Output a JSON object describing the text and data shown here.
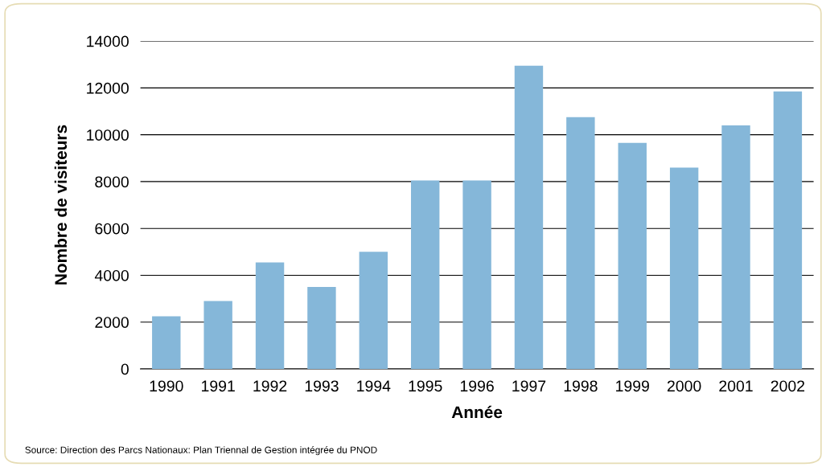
{
  "chart_data": {
    "type": "bar",
    "xlabel": "Année",
    "ylabel": "Nombre de visiteurs",
    "categories": [
      "1990",
      "1991",
      "1992",
      "1993",
      "1994",
      "1995",
      "1996",
      "1997",
      "1998",
      "1999",
      "2000",
      "2001",
      "2002"
    ],
    "values": [
      2250,
      2900,
      4550,
      3500,
      5000,
      8050,
      8050,
      12950,
      10750,
      9650,
      8600,
      10400,
      11850
    ],
    "color": "#85b7d9",
    "ylim": [
      0,
      14000
    ],
    "yticks": [
      0,
      2000,
      4000,
      6000,
      8000,
      10000,
      12000,
      14000
    ],
    "grid": "y",
    "annotations": [
      "Source: Direction des Parcs Nationaux: Plan Triennal de Gestion intégrée du PNOD"
    ]
  }
}
